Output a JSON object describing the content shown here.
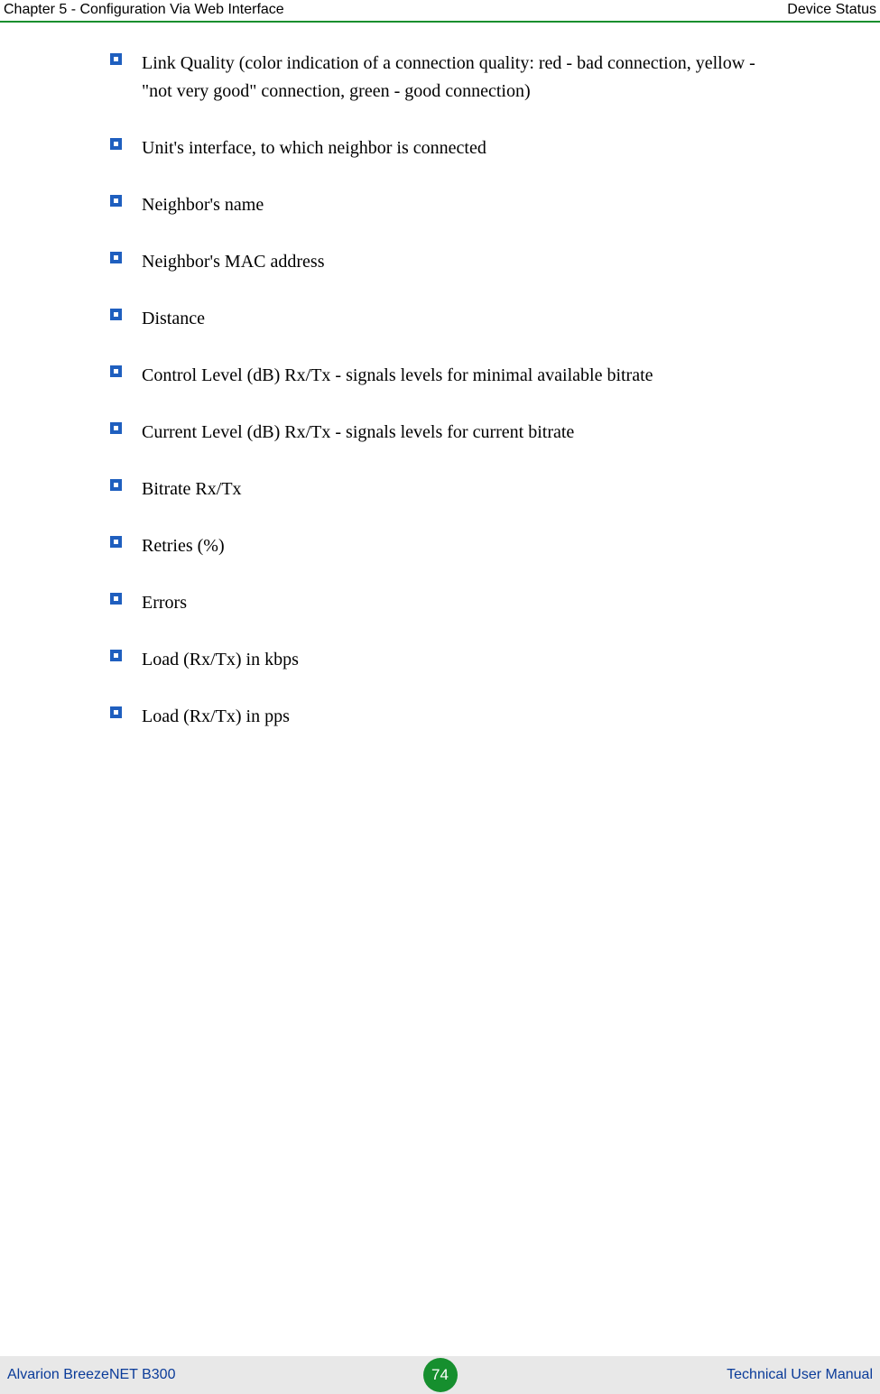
{
  "header": {
    "left": "Chapter 5 - Configuration Via Web Interface",
    "right": "Device Status",
    "rule_color": "#168f2e"
  },
  "content": {
    "bullet_style": {
      "outer_fill": "#1f5fbf",
      "inner_fill": "#ffffff",
      "outer_size": 13,
      "inner_size": 5
    },
    "items": [
      "Link Quality (color indication of a connection quality: red - bad connection, yellow - \"not very good\" connection,  green - good connection)",
      "Unit's interface, to which neighbor is connected",
      "Neighbor's name",
      "Neighbor's MAC address",
      "Distance",
      "Control Level (dB) Rx/Tx - signals levels for minimal available bitrate",
      "Current Level (dB) Rx/Tx - signals levels for current bitrate",
      "Bitrate Rx/Tx",
      "Retries (%)",
      "Errors",
      "Load (Rx/Tx) in kbps",
      "Load (Rx/Tx) in pps"
    ]
  },
  "footer": {
    "left": "Alvarion BreezeNET B300",
    "right": "Technical User Manual",
    "page_number": "74",
    "badge_color": "#168f2e",
    "bg_color": "#e8e8e8",
    "text_color": "#0a3b99"
  }
}
